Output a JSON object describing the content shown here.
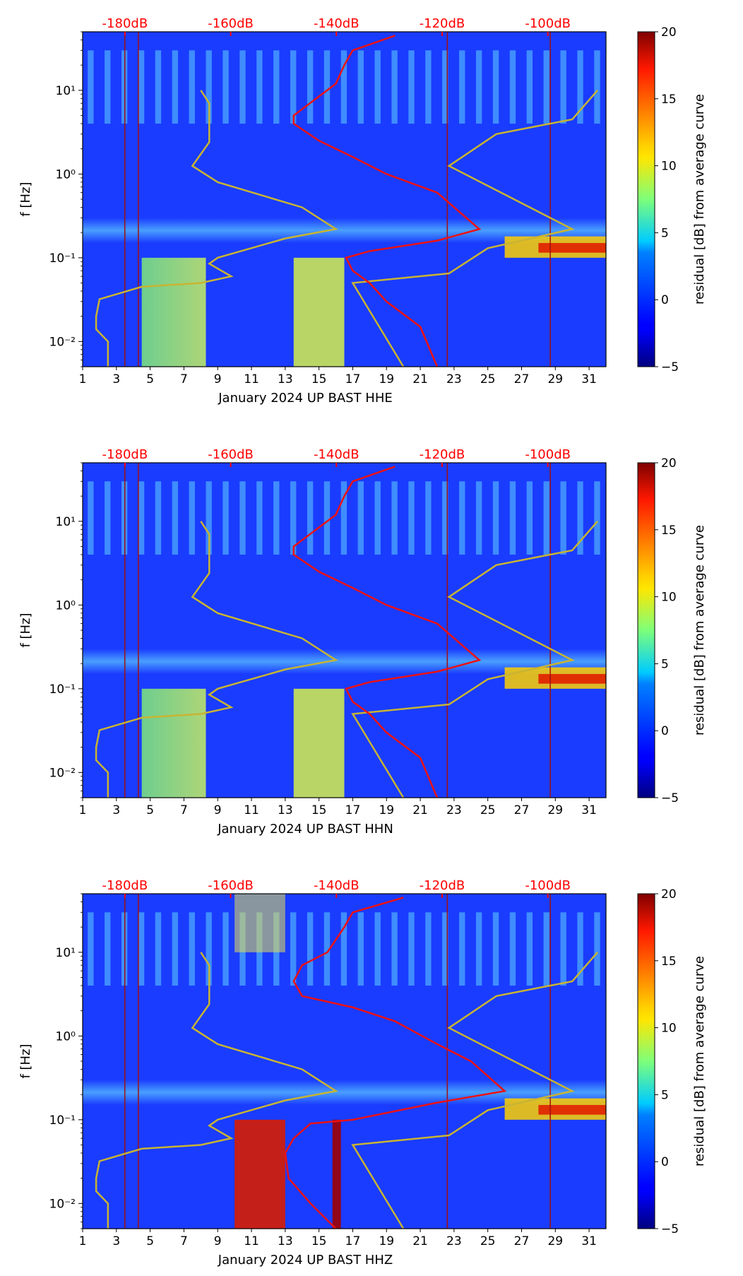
{
  "colors": {
    "nlnm_nhnm": "#c8b432",
    "psd_curve": "#ee1111",
    "db_axis": "#ff0000",
    "background_field": "#1a3cff"
  },
  "colormap": "jet",
  "chart_data": [
    {
      "type": "heatmap",
      "xlabel": "January 2024 UP BAST  HHE",
      "ylabel": "f [Hz]",
      "colorbar_label": "residual [dB] from average curve",
      "x_ticks": [
        "1",
        "3",
        "5",
        "7",
        "9",
        "11",
        "13",
        "15",
        "17",
        "19",
        "21",
        "23",
        "25",
        "27",
        "29",
        "31"
      ],
      "y_ticks": [
        "10⁻²",
        "10⁻¹",
        "10⁰",
        "10¹"
      ],
      "y_scale": "log",
      "ylim": [
        0.005,
        50
      ],
      "xlim": [
        1,
        32
      ],
      "db_ticks": [
        "-180dB",
        "-160dB",
        "-140dB",
        "-120dB",
        "-100dB"
      ],
      "colorbar_ticks": [
        "−5",
        "0",
        "5",
        "10",
        "15",
        "20"
      ],
      "clim": [
        -5,
        20
      ],
      "lp_band": "none"
    },
    {
      "type": "heatmap",
      "xlabel": "January 2024 UP BAST  HHN",
      "ylabel": "f [Hz]",
      "colorbar_label": "residual [dB] from average curve",
      "x_ticks": [
        "1",
        "3",
        "5",
        "7",
        "9",
        "11",
        "13",
        "15",
        "17",
        "19",
        "21",
        "23",
        "25",
        "27",
        "29",
        "31"
      ],
      "y_ticks": [
        "10⁻²",
        "10⁻¹",
        "10⁰",
        "10¹"
      ],
      "y_scale": "log",
      "ylim": [
        0.005,
        50
      ],
      "xlim": [
        1,
        32
      ],
      "db_ticks": [
        "-180dB",
        "-160dB",
        "-140dB",
        "-120dB",
        "-100dB"
      ],
      "colorbar_ticks": [
        "−5",
        "0",
        "5",
        "10",
        "15",
        "20"
      ],
      "clim": [
        -5,
        20
      ],
      "lp_band": "none"
    },
    {
      "type": "heatmap",
      "xlabel": "January 2024 UP BAST  HHZ",
      "ylabel": "f [Hz]",
      "colorbar_label": "residual [dB] from average curve",
      "x_ticks": [
        "1",
        "3",
        "5",
        "7",
        "9",
        "11",
        "13",
        "15",
        "17",
        "19",
        "21",
        "23",
        "25",
        "27",
        "29",
        "31"
      ],
      "y_ticks": [
        "10⁻²",
        "10⁻¹",
        "10⁰",
        "10¹"
      ],
      "y_scale": "log",
      "ylim": [
        0.005,
        50
      ],
      "xlim": [
        1,
        32
      ],
      "db_ticks": [
        "-180dB",
        "-160dB",
        "-140dB",
        "-120dB",
        "-100dB"
      ],
      "colorbar_ticks": [
        "−5",
        "0",
        "5",
        "10",
        "15",
        "20"
      ],
      "clim": [
        -5,
        20
      ],
      "lp_band": "red"
    }
  ]
}
